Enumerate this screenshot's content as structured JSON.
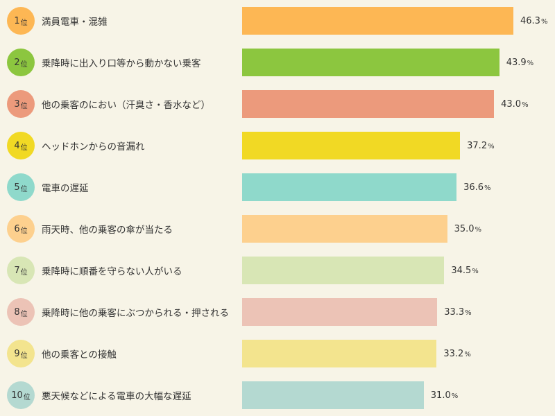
{
  "chart_data": {
    "type": "bar",
    "orientation": "horizontal",
    "rank_suffix": "位",
    "value_unit": "%",
    "xlim": [
      0,
      51
    ],
    "ranks": [
      1,
      2,
      3,
      4,
      5,
      6,
      7,
      8,
      9,
      10
    ],
    "categories": [
      "満員電車・混雑",
      "乗降時に出入り口等から動かない乗客",
      "他の乗客のにおい（汗臭さ・香水など）",
      "ヘッドホンからの音漏れ",
      "電車の遅延",
      "雨天時、他の乗客の傘が当たる",
      "乗降時に順番を守らない人がいる",
      "乗降時に他の乗客にぶつかられる・押される",
      "他の乗客との接触",
      "悪天候などによる電車の大幅な遅延"
    ],
    "values": [
      46.3,
      43.9,
      43.0,
      37.2,
      36.6,
      35.0,
      34.5,
      33.3,
      33.2,
      31.0
    ],
    "value_labels": [
      "46.3",
      "43.9",
      "43.0",
      "37.2",
      "36.6",
      "35.0",
      "34.5",
      "33.3",
      "33.2",
      "31.0"
    ],
    "colors": [
      "#fdb754",
      "#8cc63f",
      "#ec9a7c",
      "#f1d924",
      "#8fd9cb",
      "#fdd08e",
      "#d8e6b5",
      "#ecc3b6",
      "#f3e48e",
      "#b4d9d1"
    ]
  }
}
